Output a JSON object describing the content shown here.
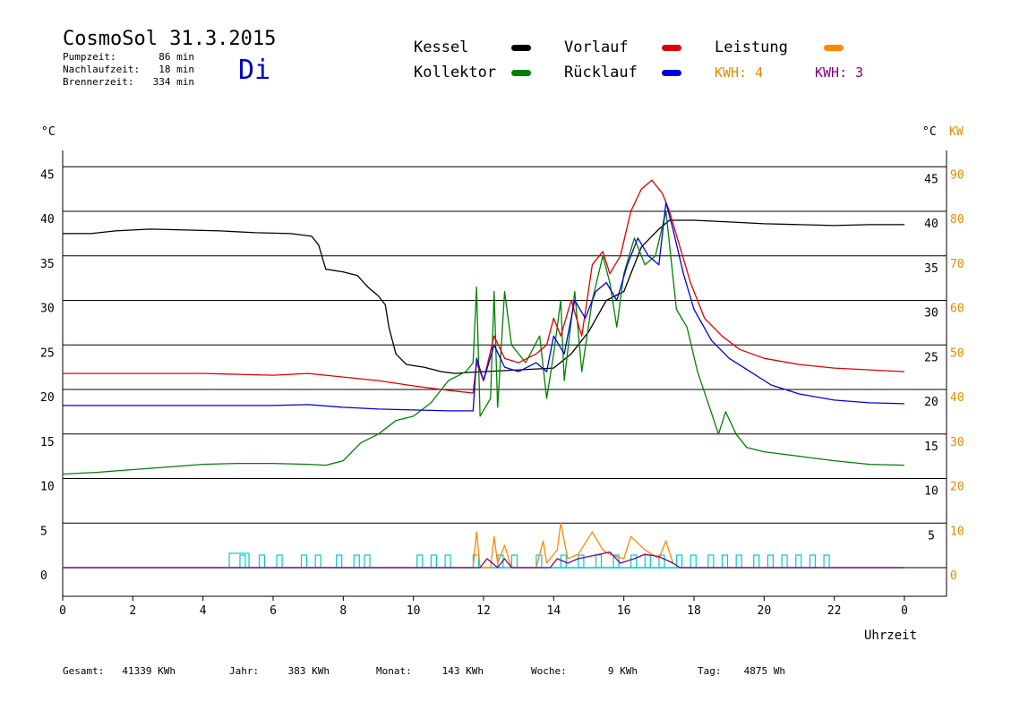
{
  "header": {
    "title": "CosmoSol 31.3.2015",
    "day": "Di",
    "info": [
      {
        "label": "Pumpzeit:",
        "value": "86 min"
      },
      {
        "label": "Nachlaufzeit:",
        "value": "18 min"
      },
      {
        "label": "Brennerzeit:",
        "value": "334 min"
      }
    ]
  },
  "legend": {
    "items": [
      {
        "label": "Kessel",
        "color": "#000000"
      },
      {
        "label": "Kollektor",
        "color": "#008000"
      },
      {
        "label": "Vorlauf",
        "color": "#dd0000"
      },
      {
        "label": "Rücklauf",
        "color": "#0000dd"
      },
      {
        "label": "Leistung",
        "color": "#ff8800"
      }
    ],
    "kwh": [
      {
        "label": "KWH: 4",
        "color": "#e08a00"
      },
      {
        "label": "KWH: 3",
        "color": "#800080"
      }
    ]
  },
  "footer": [
    {
      "label": "Gesamt:",
      "value": "41339 KWh"
    },
    {
      "label": "Jahr:",
      "value": "383 KWh"
    },
    {
      "label": "Monat:",
      "value": "143 KWh"
    },
    {
      "label": "Woche:",
      "value": "9 KWh"
    },
    {
      "label": "Tag:",
      "value": "4875 Wh"
    }
  ],
  "chart_data": {
    "type": "line",
    "xlabel": "Uhrzeit",
    "ylabel_left": "°C",
    "ylabel_right": "°C",
    "ylabel_right2": "KW",
    "xlim": [
      0,
      24
    ],
    "ylim": [
      0,
      45
    ],
    "ylim_right2": [
      0,
      90
    ],
    "x_ticks": [
      "0",
      "2",
      "4",
      "6",
      "8",
      "10",
      "12",
      "14",
      "16",
      "18",
      "20",
      "22",
      "0"
    ],
    "y_ticks_left": [
      "0",
      "5",
      "10",
      "15",
      "20",
      "25",
      "30",
      "35",
      "40",
      "45"
    ],
    "y_ticks_right": [
      "5",
      "10",
      "15",
      "20",
      "25",
      "30",
      "35",
      "40",
      "45"
    ],
    "y_ticks_right2": [
      "0",
      "10",
      "20",
      "30",
      "40",
      "50",
      "60",
      "70",
      "80",
      "90"
    ],
    "grid": true,
    "series": [
      {
        "name": "Kessel",
        "color": "#000000",
        "points": [
          [
            0,
            37.5
          ],
          [
            0.8,
            37.5
          ],
          [
            1.5,
            37.8
          ],
          [
            2.5,
            38
          ],
          [
            4.5,
            37.8
          ],
          [
            5.5,
            37.6
          ],
          [
            6.5,
            37.5
          ],
          [
            7.1,
            37.2
          ],
          [
            7.3,
            36.2
          ],
          [
            7.5,
            33.5
          ],
          [
            8,
            33.2
          ],
          [
            8.4,
            32.8
          ],
          [
            8.7,
            31.5
          ],
          [
            9,
            30.5
          ],
          [
            9.2,
            29.5
          ],
          [
            9.3,
            27
          ],
          [
            9.5,
            24
          ],
          [
            9.8,
            22.8
          ],
          [
            10.3,
            22.5
          ],
          [
            10.8,
            22
          ],
          [
            11.2,
            21.8
          ],
          [
            11.5,
            21.9
          ],
          [
            12,
            22
          ],
          [
            12.5,
            22.1
          ],
          [
            13,
            22.2
          ],
          [
            13.5,
            22.3
          ],
          [
            14,
            22.4
          ],
          [
            14.5,
            24
          ],
          [
            15,
            26.5
          ],
          [
            15.5,
            30
          ],
          [
            16,
            31
          ],
          [
            16.5,
            36
          ],
          [
            17,
            38
          ],
          [
            17.3,
            39
          ],
          [
            18,
            39
          ],
          [
            19,
            38.8
          ],
          [
            20,
            38.6
          ],
          [
            21,
            38.5
          ],
          [
            22,
            38.4
          ],
          [
            23,
            38.5
          ],
          [
            24,
            38.5
          ]
        ]
      },
      {
        "name": "Kollektor",
        "color": "#008000",
        "points": [
          [
            0,
            10.5
          ],
          [
            1,
            10.7
          ],
          [
            2,
            11
          ],
          [
            3,
            11.3
          ],
          [
            4,
            11.6
          ],
          [
            5,
            11.7
          ],
          [
            6,
            11.7
          ],
          [
            7,
            11.6
          ],
          [
            7.5,
            11.5
          ],
          [
            8,
            12
          ],
          [
            8.5,
            14
          ],
          [
            9,
            15
          ],
          [
            9.5,
            16.5
          ],
          [
            10,
            17
          ],
          [
            10.5,
            18.5
          ],
          [
            11,
            21
          ],
          [
            11.5,
            22
          ],
          [
            11.7,
            23
          ],
          [
            11.8,
            31.5
          ],
          [
            11.9,
            17
          ],
          [
            12.2,
            19
          ],
          [
            12.3,
            31
          ],
          [
            12.4,
            18
          ],
          [
            12.6,
            31
          ],
          [
            12.8,
            25
          ],
          [
            13.2,
            23
          ],
          [
            13.6,
            26
          ],
          [
            13.8,
            19
          ],
          [
            14,
            24
          ],
          [
            14.2,
            30
          ],
          [
            14.3,
            21
          ],
          [
            14.6,
            31
          ],
          [
            14.8,
            22
          ],
          [
            15.1,
            30
          ],
          [
            15.4,
            35
          ],
          [
            15.6,
            32
          ],
          [
            15.8,
            27
          ],
          [
            16,
            33
          ],
          [
            16.3,
            37
          ],
          [
            16.6,
            34
          ],
          [
            16.9,
            35
          ],
          [
            17.2,
            40
          ],
          [
            17.5,
            29
          ],
          [
            17.8,
            27
          ],
          [
            18.1,
            22
          ],
          [
            18.4,
            18.5
          ],
          [
            18.7,
            15
          ],
          [
            18.9,
            17.5
          ],
          [
            19.2,
            15
          ],
          [
            19.5,
            13.5
          ],
          [
            20,
            13
          ],
          [
            21,
            12.5
          ],
          [
            22,
            12
          ],
          [
            23,
            11.6
          ],
          [
            24,
            11.5
          ]
        ]
      },
      {
        "name": "Vorlauf",
        "color": "#dd0000",
        "points": [
          [
            0,
            21.8
          ],
          [
            2,
            21.8
          ],
          [
            4,
            21.8
          ],
          [
            5,
            21.7
          ],
          [
            6,
            21.6
          ],
          [
            7,
            21.8
          ],
          [
            8,
            21.4
          ],
          [
            9,
            21
          ],
          [
            10,
            20.4
          ],
          [
            11,
            19.9
          ],
          [
            11.7,
            19.6
          ],
          [
            11.8,
            23
          ],
          [
            12,
            21
          ],
          [
            12.3,
            26
          ],
          [
            12.6,
            23.5
          ],
          [
            13,
            23
          ],
          [
            13.5,
            24
          ],
          [
            13.8,
            25
          ],
          [
            14,
            28
          ],
          [
            14.2,
            26
          ],
          [
            14.5,
            30
          ],
          [
            14.8,
            26
          ],
          [
            15.1,
            34
          ],
          [
            15.4,
            35.5
          ],
          [
            15.6,
            33
          ],
          [
            15.9,
            35
          ],
          [
            16.2,
            40
          ],
          [
            16.5,
            42.5
          ],
          [
            16.8,
            43.5
          ],
          [
            17.1,
            42
          ],
          [
            17.3,
            40
          ],
          [
            17.6,
            36
          ],
          [
            17.9,
            32
          ],
          [
            18.3,
            28
          ],
          [
            18.8,
            26
          ],
          [
            19.3,
            24.5
          ],
          [
            20,
            23.5
          ],
          [
            21,
            22.8
          ],
          [
            22,
            22.4
          ],
          [
            23,
            22.2
          ],
          [
            24,
            22
          ]
        ]
      },
      {
        "name": "Rücklauf",
        "color": "#0000dd",
        "points": [
          [
            0,
            18.2
          ],
          [
            2,
            18.2
          ],
          [
            4,
            18.2
          ],
          [
            6,
            18.2
          ],
          [
            7,
            18.3
          ],
          [
            8,
            18
          ],
          [
            9,
            17.8
          ],
          [
            10,
            17.7
          ],
          [
            11,
            17.6
          ],
          [
            11.7,
            17.6
          ],
          [
            11.8,
            23.5
          ],
          [
            12,
            21
          ],
          [
            12.3,
            25
          ],
          [
            12.6,
            22.5
          ],
          [
            13,
            22
          ],
          [
            13.5,
            23
          ],
          [
            13.8,
            22
          ],
          [
            14,
            26
          ],
          [
            14.3,
            24
          ],
          [
            14.6,
            30
          ],
          [
            14.9,
            28
          ],
          [
            15.2,
            31
          ],
          [
            15.5,
            32
          ],
          [
            15.8,
            30
          ],
          [
            16.1,
            34
          ],
          [
            16.4,
            37
          ],
          [
            16.7,
            35
          ],
          [
            17,
            34
          ],
          [
            17.2,
            41
          ],
          [
            17.4,
            38
          ],
          [
            17.7,
            33
          ],
          [
            18,
            29
          ],
          [
            18.5,
            25.5
          ],
          [
            19,
            23.5
          ],
          [
            19.6,
            22
          ],
          [
            20.2,
            20.5
          ],
          [
            21,
            19.5
          ],
          [
            22,
            18.8
          ],
          [
            23,
            18.5
          ],
          [
            24,
            18.4
          ]
        ]
      },
      {
        "name": "Leistung",
        "color": "#ff8800",
        "axis": "KW",
        "points": [
          [
            0,
            0
          ],
          [
            11.7,
            0
          ],
          [
            11.8,
            8
          ],
          [
            11.9,
            0
          ],
          [
            12.2,
            0
          ],
          [
            12.3,
            7
          ],
          [
            12.4,
            1
          ],
          [
            12.6,
            5
          ],
          [
            12.8,
            0
          ],
          [
            13.5,
            0
          ],
          [
            13.7,
            6
          ],
          [
            13.8,
            1
          ],
          [
            14.1,
            4
          ],
          [
            14.2,
            10
          ],
          [
            14.4,
            2
          ],
          [
            14.7,
            3
          ],
          [
            15.1,
            8
          ],
          [
            15.4,
            4
          ],
          [
            15.6,
            3
          ],
          [
            16,
            2
          ],
          [
            16.2,
            7
          ],
          [
            16.6,
            4
          ],
          [
            17,
            2
          ],
          [
            17.2,
            6
          ],
          [
            17.4,
            1
          ],
          [
            17.6,
            0
          ],
          [
            24,
            0
          ]
        ]
      },
      {
        "name": "KWH: 3",
        "color": "#800080",
        "axis": "KW",
        "points": [
          [
            0,
            0
          ],
          [
            11.9,
            0
          ],
          [
            12.1,
            2
          ],
          [
            12.4,
            0
          ],
          [
            12.6,
            2
          ],
          [
            12.8,
            0
          ],
          [
            13.9,
            0
          ],
          [
            14.1,
            2
          ],
          [
            14.4,
            1
          ],
          [
            14.7,
            2
          ],
          [
            15.3,
            3
          ],
          [
            15.6,
            3.5
          ],
          [
            15.9,
            1
          ],
          [
            16.3,
            2
          ],
          [
            16.6,
            3
          ],
          [
            17,
            2.5
          ],
          [
            17.4,
            1
          ],
          [
            17.6,
            0
          ],
          [
            24,
            0
          ]
        ]
      }
    ]
  }
}
